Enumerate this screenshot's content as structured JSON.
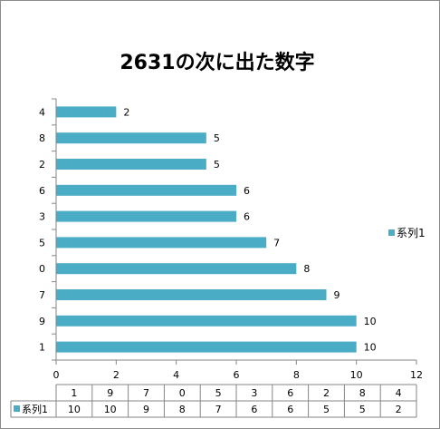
{
  "chart_data": {
    "type": "bar",
    "orientation": "horizontal",
    "title": "2631の次に出た数字",
    "categories": [
      "4",
      "8",
      "2",
      "6",
      "3",
      "5",
      "0",
      "7",
      "9",
      "1"
    ],
    "series": [
      {
        "name": "系列1",
        "values": [
          2,
          5,
          5,
          6,
          6,
          7,
          8,
          9,
          10,
          10
        ]
      }
    ],
    "xlim": [
      0,
      12
    ],
    "x_ticks": [
      "0",
      "2",
      "4",
      "6",
      "8",
      "10",
      "12"
    ],
    "data_labels": true,
    "grid": false,
    "legend": "right",
    "data_table": {
      "header": [
        "1",
        "9",
        "7",
        "0",
        "5",
        "3",
        "6",
        "2",
        "8",
        "4"
      ],
      "row_label": "系列1",
      "values": [
        "10",
        "10",
        "9",
        "8",
        "7",
        "6",
        "6",
        "5",
        "5",
        "2"
      ]
    },
    "colors": {
      "bar": "#4BACC6",
      "axis": "#868686",
      "table_border": "#868686"
    }
  }
}
